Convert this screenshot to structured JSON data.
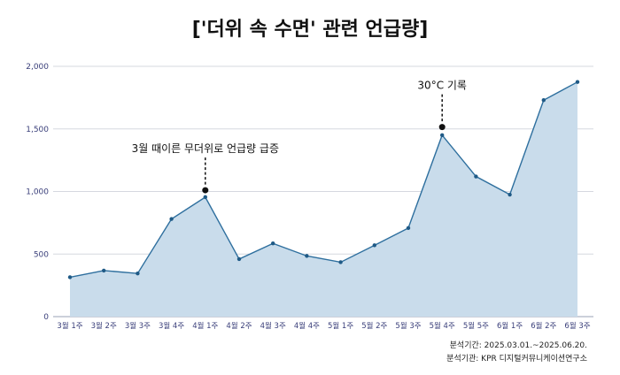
{
  "title": "['더위 속 수면' 관련 언급량]",
  "colors": {
    "area_fill": "#c9dceb",
    "line": "#2e6f9e",
    "point": "#1f5a86",
    "grid": "#d5d8df",
    "axis_text": "#3a3f7a",
    "annotation": "#111111"
  },
  "chart_data": {
    "type": "area",
    "categories": [
      "3월 1주",
      "3월 2주",
      "3월 3주",
      "3월 4주",
      "4월 1주",
      "4월 2주",
      "4월 3주",
      "4월 4주",
      "5월 1주",
      "5월 2주",
      "5월 3주",
      "5월 4주",
      "5월 5주",
      "6월 1주",
      "6월 2주",
      "6월 3주"
    ],
    "values": [
      315,
      368,
      345,
      780,
      955,
      460,
      585,
      485,
      435,
      570,
      708,
      1450,
      1120,
      975,
      1730,
      1875
    ],
    "yticks": [
      0,
      500,
      1000,
      1500,
      2000
    ],
    "ytick_labels": [
      "0",
      "500",
      "1,000",
      "1,500",
      "2,000"
    ],
    "ylim": [
      0,
      2000
    ],
    "grid": true,
    "annotations": [
      {
        "category_index": 4,
        "value": 1010,
        "text": "3월 때이른 무더위로 언급량 급증"
      },
      {
        "category_index": 11,
        "value": 1515,
        "text": "30°C 기록"
      }
    ]
  },
  "source": {
    "period": "분석기간: 2025.03.01.~2025.06.20.",
    "agency": "분석기관: KPR 디지털커뮤니케이션연구소"
  }
}
